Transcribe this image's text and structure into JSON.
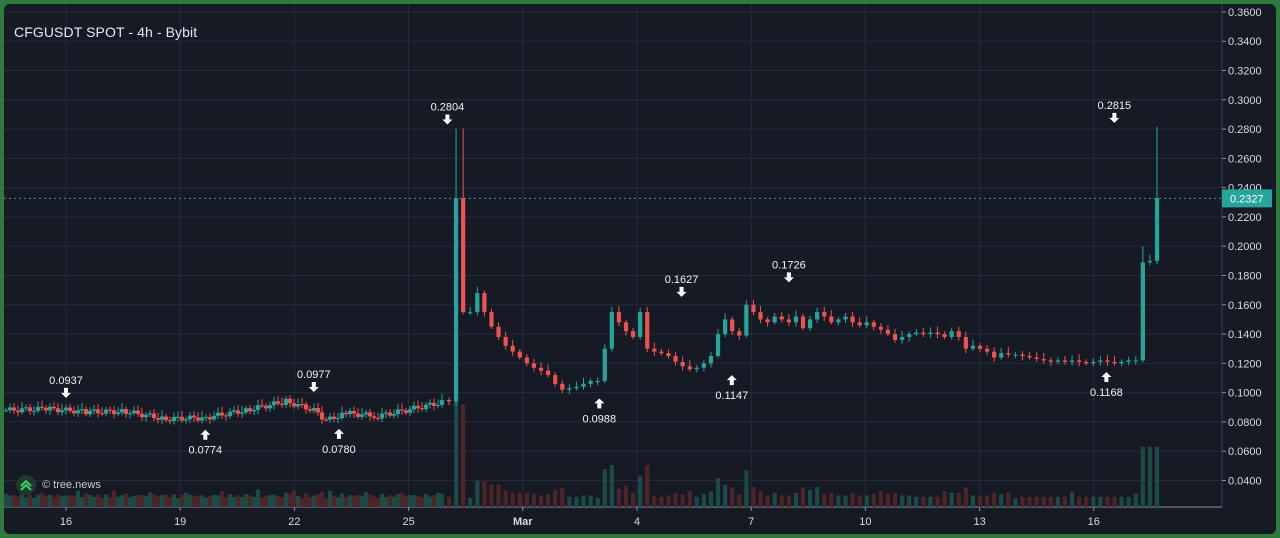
{
  "header": {
    "title": "CFGUSDT SPOT - 4h - Bybit"
  },
  "watermark": {
    "text": "© tree.news",
    "icon": "tree-news-logo-icon"
  },
  "chart_data": {
    "type": "candlestick",
    "title": "CFGUSDT SPOT - 4h - Bybit",
    "x_tick_labels": [
      "16",
      "19",
      "22",
      "25",
      "Mar",
      "4",
      "7",
      "10",
      "13",
      "16"
    ],
    "y_tick_labels": [
      "0.3600",
      "0.3400",
      "0.3200",
      "0.3000",
      "0.2800",
      "0.2600",
      "0.2400",
      "0.2200",
      "0.2000",
      "0.1800",
      "0.1600",
      "0.1400",
      "0.1200",
      "0.1000",
      "0.0800",
      "0.0600",
      "0.0400"
    ],
    "ylim": [
      0.026,
      0.362
    ],
    "grid": true,
    "current_price": "0.2327",
    "colors": {
      "up": "#26a69a",
      "down": "#ef5350",
      "price_tag": "#26a69a",
      "grid": "#262b38"
    },
    "annotations": [
      {
        "label": "0.0937",
        "type": "high",
        "x_tick_index": 0.0
      },
      {
        "label": "0.0774",
        "type": "low",
        "x_tick_index": 1.22
      },
      {
        "label": "0.0977",
        "type": "high",
        "x_tick_index": 2.17
      },
      {
        "label": "0.0780",
        "type": "low",
        "x_tick_index": 2.39
      },
      {
        "label": "0.2804",
        "type": "high",
        "x_tick_index": 3.34
      },
      {
        "label": "0.0988",
        "type": "low",
        "x_tick_index": 4.67
      },
      {
        "label": "0.1627",
        "type": "high",
        "x_tick_index": 5.39
      },
      {
        "label": "0.1147",
        "type": "low",
        "x_tick_index": 5.83
      },
      {
        "label": "0.1726",
        "type": "high",
        "x_tick_index": 6.33
      },
      {
        "label": "0.1168",
        "type": "low",
        "x_tick_index": 9.11
      },
      {
        "label": "0.2815",
        "type": "high",
        "x_tick_index": 9.18
      }
    ],
    "segments": [
      [
        0.0,
        0.088
      ],
      [
        0.3,
        0.089
      ],
      [
        0.6,
        0.087
      ],
      [
        0.9,
        0.087
      ],
      [
        1.2,
        0.082
      ],
      [
        1.5,
        0.083
      ],
      [
        1.8,
        0.088
      ],
      [
        2.1,
        0.094
      ],
      [
        2.3,
        0.088
      ],
      [
        2.4,
        0.081
      ],
      [
        2.55,
        0.086
      ],
      [
        2.8,
        0.084
      ],
      [
        3.0,
        0.088
      ],
      [
        3.3,
        0.094
      ]
    ],
    "rally_1": [
      0.094,
      0.2327,
      0.155,
      0.155,
      0.168,
      0.155,
      0.145,
      0.138,
      0.132,
      0.128,
      0.124,
      0.12,
      0.117,
      0.115,
      0.112,
      0.106,
      0.102,
      0.103,
      0.104,
      0.106,
      0.108
    ],
    "middle": [
      0.108,
      0.13,
      0.155,
      0.148,
      0.142,
      0.138,
      0.155,
      0.13,
      0.128,
      0.127,
      0.125,
      0.121,
      0.118,
      0.116,
      0.117,
      0.12,
      0.125,
      0.14,
      0.15,
      0.142,
      0.139,
      0.16,
      0.155,
      0.15,
      0.148,
      0.152,
      0.15,
      0.148,
      0.152,
      0.144,
      0.15,
      0.155,
      0.152,
      0.148,
      0.15,
      0.152,
      0.148,
      0.146,
      0.148,
      0.145,
      0.143,
      0.14,
      0.136,
      0.138,
      0.14,
      0.141,
      0.14,
      0.141,
      0.14,
      0.138,
      0.142,
      0.138,
      0.13,
      0.132,
      0.13,
      0.128,
      0.124,
      0.127,
      0.126,
      0.126,
      0.125,
      0.124,
      0.123,
      0.122,
      0.121,
      0.122,
      0.121,
      0.122,
      0.121,
      0.12,
      0.121,
      0.122,
      0.121,
      0.12,
      0.121,
      0.122
    ],
    "rally_2": [
      0.122,
      0.189,
      0.19,
      0.2327
    ]
  }
}
